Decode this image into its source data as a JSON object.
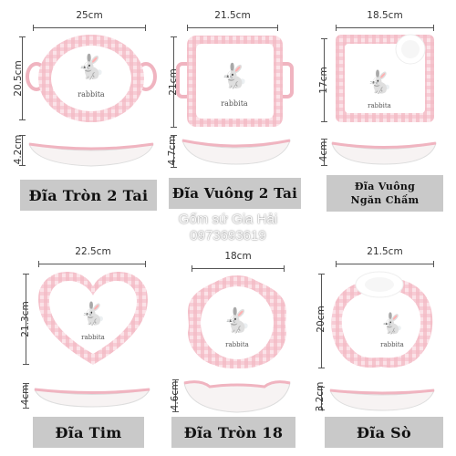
{
  "plates": [
    {
      "name": "Đĩa Tròn 2 Tai",
      "width": "25cm",
      "height": "20.5cm",
      "depth": "4.2cm"
    },
    {
      "name": "Đĩa Vuông 2 Tai",
      "width": "21.5cm",
      "height": "21cm",
      "depth": "4.7cm"
    },
    {
      "name_line1": "Đĩa Vuông",
      "name_line2": "Ngăn Chấm",
      "width": "18.5cm",
      "height": "17cm",
      "depth": "4cm"
    },
    {
      "name": "Đĩa Tim",
      "width": "22.5cm",
      "height": "21.3cm",
      "depth": "4cm"
    },
    {
      "name": "Đĩa Tròn 18",
      "width": "18cm",
      "height": "",
      "depth": "4.6cm"
    },
    {
      "name": "Đĩa Sò",
      "width": "21.5cm",
      "height": "20cm",
      "depth": "3.2cm"
    }
  ],
  "plate_art_text": "rabbita",
  "watermark": {
    "shop": "Gốm sứ Gia Hải",
    "phone": "0973693619"
  },
  "colors": {
    "check_pink": "#f2b8c2",
    "heart_pink": "#e88fa0",
    "label_bg": "#c9c9c9"
  }
}
